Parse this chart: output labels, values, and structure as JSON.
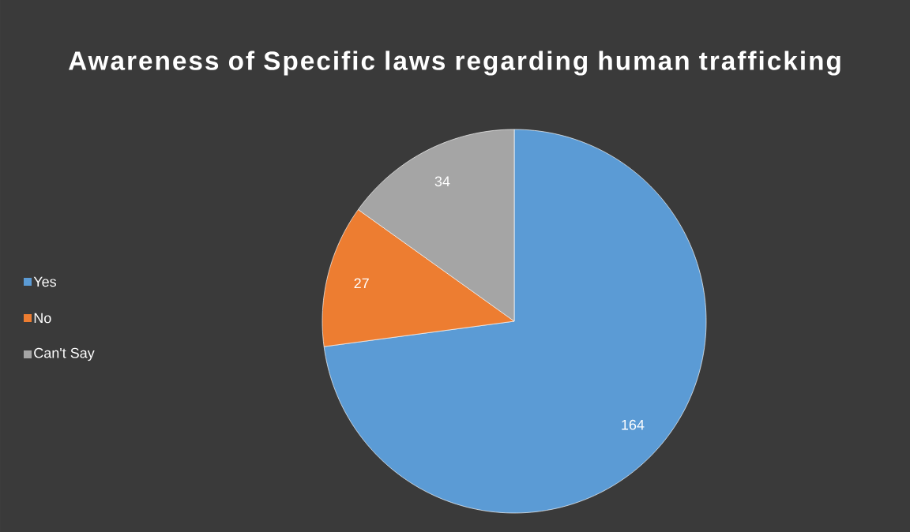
{
  "chart_data": {
    "type": "pie",
    "title": "Awareness of Specific laws regarding human trafficking",
    "categories": [
      "Yes",
      "No",
      "Can't Say"
    ],
    "values": [
      164,
      27,
      34
    ],
    "colors": [
      "#5b9bd5",
      "#ed7d31",
      "#a5a5a5"
    ],
    "data_labels": true,
    "legend": "left"
  }
}
